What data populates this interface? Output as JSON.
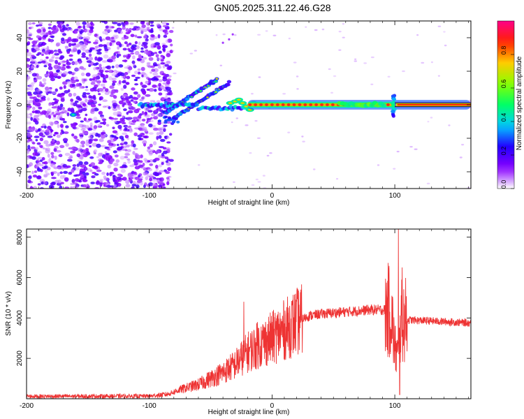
{
  "figure": {
    "title": "GN05.2025.311.22.46.G28"
  },
  "chart_data": [
    {
      "type": "heatmap",
      "name": "spectrogram",
      "xlabel": "Height of straight line (km)",
      "ylabel": "Frequency (Hz)",
      "xlim": [
        -200,
        162
      ],
      "ylim": [
        -50,
        50
      ],
      "xticks": [
        -200,
        -100,
        0,
        100
      ],
      "yticks": [
        -40,
        -20,
        0,
        20,
        40
      ],
      "colorbar": {
        "label": "Normalized spectral amplitude",
        "range": [
          0,
          1
        ],
        "ticks": [
          0.0,
          0.2,
          0.4,
          0.6,
          0.8
        ],
        "colors": [
          "#ffffff",
          "#8800ff",
          "#2200ff",
          "#00ccff",
          "#00ff66",
          "#88ff00",
          "#ffcc00",
          "#ff2200",
          "#ff0088"
        ]
      },
      "features": {
        "noise_region_x": [
          -200,
          -88
        ],
        "main_tone_x": [
          -20,
          162
        ],
        "main_tone_freq": 0,
        "branches": [
          {
            "x": [
              -88,
              -45
            ],
            "freq": [
              -5,
              15
            ]
          },
          {
            "x": [
              -80,
              -35
            ],
            "freq": [
              -8,
              13
            ]
          }
        ],
        "disturbance_x": 99
      }
    },
    {
      "type": "line",
      "name": "snr",
      "xlabel": "Height of straight line (km)",
      "ylabel": "SNR (10 * v/v)",
      "xlim": [
        -200,
        162
      ],
      "ylim": [
        0,
        8400
      ],
      "xticks": [
        -200,
        -100,
        0,
        100
      ],
      "yticks": [
        2000,
        4000,
        6000,
        8000
      ],
      "series": [
        {
          "name": "SNR",
          "color": "#ee3333",
          "envelope_x": [
            -200,
            -100,
            -85,
            -75,
            -60,
            -50,
            -40,
            -30,
            -20,
            -10,
            0,
            10,
            20,
            30,
            40,
            60,
            80,
            92,
            97,
            100,
            103,
            105,
            108,
            112,
            130,
            162
          ],
          "envelope_y": [
            120,
            130,
            220,
            450,
            700,
            1000,
            1300,
            1700,
            2300,
            2700,
            3000,
            3400,
            3800,
            4100,
            4200,
            4300,
            4400,
            4400,
            4300,
            2500,
            2000,
            3800,
            3900,
            3900,
            3850,
            3750
          ],
          "peaks": [
            {
              "x": -23,
              "y": 4800
            },
            {
              "x": -12,
              "y": 3800
            },
            {
              "x": 95,
              "y": 4800
            },
            {
              "x": 103,
              "y": 8400
            },
            {
              "x": 104,
              "y": 200
            },
            {
              "x": 106,
              "y": 6500
            }
          ]
        }
      ]
    }
  ]
}
